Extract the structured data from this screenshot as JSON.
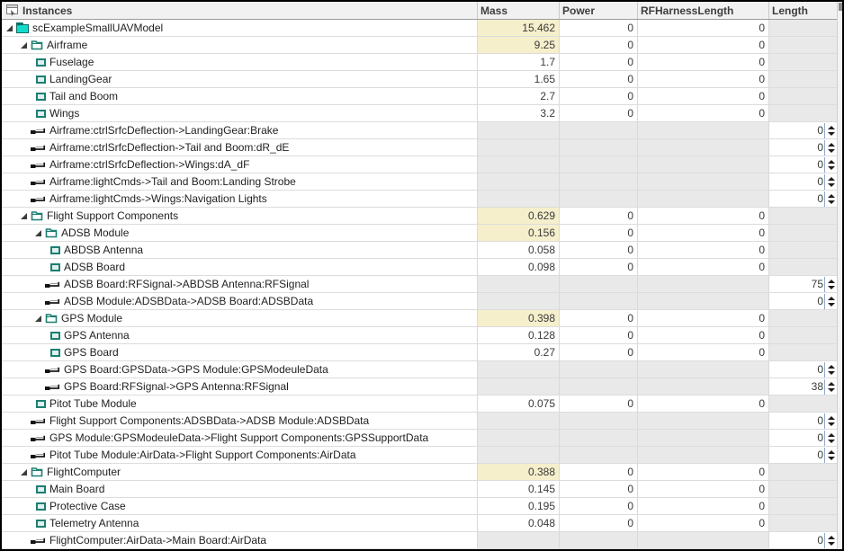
{
  "header": {
    "instances": "Instances",
    "mass": "Mass",
    "power": "Power",
    "rf": "RFHarnessLength",
    "length": "Length"
  },
  "colors": {
    "accent_teal": "#1d7e72",
    "model_fill": "#12dbcd",
    "model_tab": "#0e6e63",
    "mass_highlight": "#f6efcc",
    "disabled_cell": "#e9e9e9",
    "gridline": "#dcdcdc"
  },
  "icons": {
    "header": "instances-grid-icon",
    "model": "model-icon",
    "package": "folder-icon",
    "component": "component-icon",
    "connector": "connector-icon",
    "expand": "expand-arrow-icon",
    "spinner_up": "spinner-up-icon",
    "spinner_down": "spinner-down-icon"
  },
  "rows": [
    {
      "label": "scExampleSmallUAVModel",
      "type": "model",
      "level": 0,
      "expanded": true,
      "mass": "15.462",
      "massHl": true,
      "power": "0",
      "rf": "0",
      "length": null
    },
    {
      "label": "Airframe",
      "type": "package",
      "level": 1,
      "expanded": true,
      "mass": "9.25",
      "massHl": true,
      "power": "0",
      "rf": "0",
      "length": null
    },
    {
      "label": "Fuselage",
      "type": "component",
      "level": 2,
      "mass": "1.7",
      "power": "0",
      "rf": "0",
      "length": null
    },
    {
      "label": "LandingGear",
      "type": "component",
      "level": 2,
      "mass": "1.65",
      "power": "0",
      "rf": "0",
      "length": null
    },
    {
      "label": "Tail and Boom",
      "type": "component",
      "level": 2,
      "mass": "2.7",
      "power": "0",
      "rf": "0",
      "length": null
    },
    {
      "label": "Wings",
      "type": "component",
      "level": 2,
      "mass": "3.2",
      "power": "0",
      "rf": "0",
      "length": null
    },
    {
      "label": "Airframe:ctrlSrfcDeflection->LandingGear:Brake",
      "type": "connector",
      "level": 2,
      "length": "0"
    },
    {
      "label": "Airframe:ctrlSrfcDeflection->Tail and Boom:dR_dE",
      "type": "connector",
      "level": 2,
      "length": "0"
    },
    {
      "label": "Airframe:ctrlSrfcDeflection->Wings:dA_dF",
      "type": "connector",
      "level": 2,
      "length": "0"
    },
    {
      "label": "Airframe:lightCmds->Tail and Boom:Landing Strobe",
      "type": "connector",
      "level": 2,
      "length": "0"
    },
    {
      "label": "Airframe:lightCmds->Wings:Navigation Lights",
      "type": "connector",
      "level": 2,
      "length": "0"
    },
    {
      "label": "Flight Support Components",
      "type": "package",
      "level": 1,
      "expanded": true,
      "mass": "0.629",
      "massHl": true,
      "power": "0",
      "rf": "0",
      "length": null
    },
    {
      "label": "ADSB Module",
      "type": "package",
      "level": 2,
      "expanded": true,
      "mass": "0.156",
      "massHl": true,
      "power": "0",
      "rf": "0",
      "length": null
    },
    {
      "label": "ABDSB Antenna",
      "type": "component",
      "level": 3,
      "mass": "0.058",
      "power": "0",
      "rf": "0",
      "length": null
    },
    {
      "label": "ADSB Board",
      "type": "component",
      "level": 3,
      "mass": "0.098",
      "power": "0",
      "rf": "0",
      "length": null
    },
    {
      "label": "ADSB Board:RFSignal->ABDSB Antenna:RFSignal",
      "type": "connector",
      "level": 3,
      "length": "75"
    },
    {
      "label": "ADSB Module:ADSBData->ADSB Board:ADSBData",
      "type": "connector",
      "level": 3,
      "length": "0"
    },
    {
      "label": "GPS Module",
      "type": "package",
      "level": 2,
      "expanded": true,
      "mass": "0.398",
      "massHl": true,
      "power": "0",
      "rf": "0",
      "length": null
    },
    {
      "label": "GPS Antenna",
      "type": "component",
      "level": 3,
      "mass": "0.128",
      "power": "0",
      "rf": "0",
      "length": null
    },
    {
      "label": "GPS Board",
      "type": "component",
      "level": 3,
      "mass": "0.27",
      "power": "0",
      "rf": "0",
      "length": null
    },
    {
      "label": "GPS Board:GPSData->GPS Module:GPSModeuleData",
      "type": "connector",
      "level": 3,
      "length": "0"
    },
    {
      "label": "GPS Board:RFSignal->GPS Antenna:RFSignal",
      "type": "connector",
      "level": 3,
      "length": "38"
    },
    {
      "label": "Pitot Tube Module",
      "type": "component",
      "level": 2,
      "mass": "0.075",
      "power": "0",
      "rf": "0",
      "length": null
    },
    {
      "label": "Flight Support Components:ADSBData->ADSB Module:ADSBData",
      "type": "connector",
      "level": 2,
      "length": "0"
    },
    {
      "label": "GPS Module:GPSModeuleData->Flight Support Components:GPSSupportData",
      "type": "connector",
      "level": 2,
      "length": "0"
    },
    {
      "label": "Pitot Tube Module:AirData->Flight Support Components:AirData",
      "type": "connector",
      "level": 2,
      "length": "0"
    },
    {
      "label": "FlightComputer",
      "type": "package",
      "level": 1,
      "expanded": true,
      "mass": "0.388",
      "massHl": true,
      "power": "0",
      "rf": "0",
      "length": null
    },
    {
      "label": "Main Board",
      "type": "component",
      "level": 2,
      "mass": "0.145",
      "power": "0",
      "rf": "0",
      "length": null
    },
    {
      "label": "Protective Case",
      "type": "component",
      "level": 2,
      "mass": "0.195",
      "power": "0",
      "rf": "0",
      "length": null
    },
    {
      "label": "Telemetry Antenna",
      "type": "component",
      "level": 2,
      "mass": "0.048",
      "power": "0",
      "rf": "0",
      "length": null
    },
    {
      "label": "FlightComputer:AirData->Main Board:AirData",
      "type": "connector",
      "level": 2,
      "length": "0"
    }
  ]
}
